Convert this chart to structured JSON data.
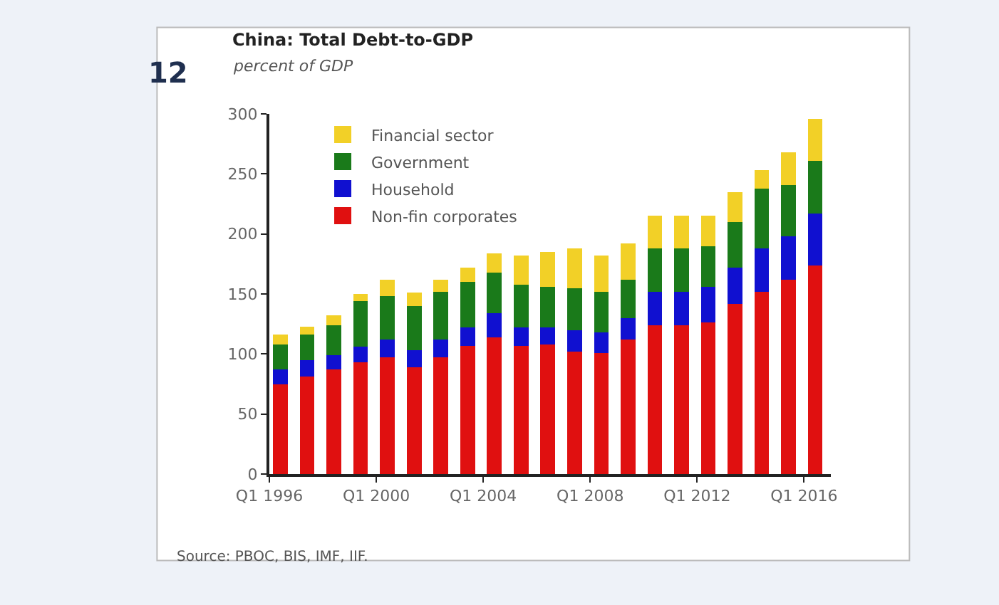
{
  "chart_data": {
    "type": "bar",
    "stacked": true,
    "title": "China: Total Debt-to-GDP",
    "subtitle": "percent of GDP",
    "x": [
      "1996-06",
      "1997-06",
      "1998-06",
      "1999-06",
      "2000-06",
      "2001-06",
      "2002-06",
      "2003-06",
      "2004-06",
      "2005-06",
      "2006-06",
      "2007-06",
      "2008-06",
      "2009-06",
      "2010-06",
      "2011-06",
      "2012-06",
      "2013-06",
      "2014-06",
      "2015-06",
      "2016-06"
    ],
    "series": [
      {
        "name": "Non-fin corporates",
        "color": "#e01010",
        "values": [
          75,
          81,
          87,
          93,
          97,
          89,
          97,
          107,
          114,
          107,
          108,
          102,
          101,
          112,
          124,
          124,
          126,
          142,
          152,
          162,
          174
        ]
      },
      {
        "name": "Household",
        "color": "#1010d0",
        "values": [
          12,
          14,
          12,
          13,
          15,
          14,
          15,
          15,
          20,
          15,
          14,
          18,
          17,
          18,
          28,
          28,
          30,
          30,
          36,
          36,
          43
        ]
      },
      {
        "name": "Government",
        "color": "#1a7a1a",
        "values": [
          21,
          21,
          25,
          38,
          36,
          37,
          40,
          38,
          34,
          36,
          34,
          35,
          34,
          32,
          36,
          36,
          34,
          38,
          50,
          43,
          44
        ]
      },
      {
        "name": "Financial sector",
        "color": "#f2d027",
        "values": [
          8,
          7,
          8,
          6,
          14,
          11,
          10,
          12,
          16,
          24,
          29,
          33,
          30,
          30,
          27,
          27,
          25,
          25,
          15,
          27,
          35
        ]
      }
    ],
    "xlim": [
      "1996-01",
      "2017-01"
    ],
    "xticks": [
      {
        "value": "1996-01",
        "label": "Q1 1996"
      },
      {
        "value": "2000-01",
        "label": "Q1 2000"
      },
      {
        "value": "2004-01",
        "label": "Q1 2004"
      },
      {
        "value": "2008-01",
        "label": "Q1 2008"
      },
      {
        "value": "2012-01",
        "label": "Q1 2012"
      },
      {
        "value": "2016-01",
        "label": "Q1 2016"
      }
    ],
    "ylim": [
      0,
      300
    ],
    "yticks": [
      0,
      50,
      100,
      150,
      200,
      250,
      300
    ],
    "legend": "top left",
    "annotations": [
      "12",
      "Source: PBOC, BIS, IMF, IIF."
    ]
  }
}
